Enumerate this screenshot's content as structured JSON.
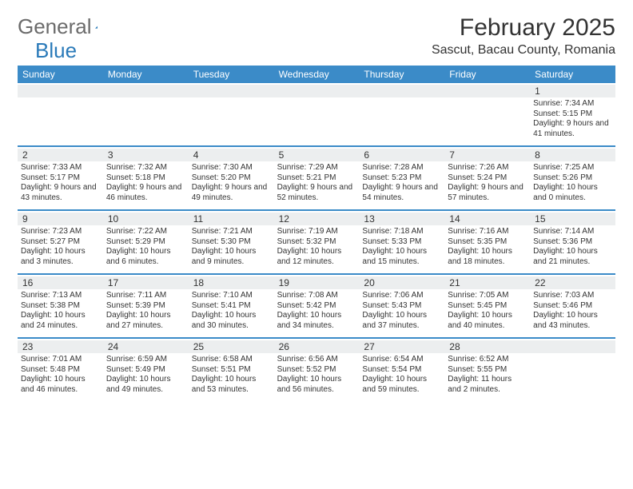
{
  "logo": {
    "text1": "General",
    "text2": "Blue"
  },
  "title": "February 2025",
  "subtitle": "Sascut, Bacau County, Romania",
  "dayNames": [
    "Sunday",
    "Monday",
    "Tuesday",
    "Wednesday",
    "Thursday",
    "Friday",
    "Saturday"
  ],
  "colors": {
    "headerBar": "#3b8bc8",
    "dayNumBg": "#eceeef",
    "logoGray": "#6b6b6b",
    "logoBlue": "#2a7ab9"
  },
  "weeks": [
    [
      null,
      null,
      null,
      null,
      null,
      null,
      {
        "n": "1",
        "sr": "7:34 AM",
        "ss": "5:15 PM",
        "dl": "9 hours and 41 minutes."
      }
    ],
    [
      {
        "n": "2",
        "sr": "7:33 AM",
        "ss": "5:17 PM",
        "dl": "9 hours and 43 minutes."
      },
      {
        "n": "3",
        "sr": "7:32 AM",
        "ss": "5:18 PM",
        "dl": "9 hours and 46 minutes."
      },
      {
        "n": "4",
        "sr": "7:30 AM",
        "ss": "5:20 PM",
        "dl": "9 hours and 49 minutes."
      },
      {
        "n": "5",
        "sr": "7:29 AM",
        "ss": "5:21 PM",
        "dl": "9 hours and 52 minutes."
      },
      {
        "n": "6",
        "sr": "7:28 AM",
        "ss": "5:23 PM",
        "dl": "9 hours and 54 minutes."
      },
      {
        "n": "7",
        "sr": "7:26 AM",
        "ss": "5:24 PM",
        "dl": "9 hours and 57 minutes."
      },
      {
        "n": "8",
        "sr": "7:25 AM",
        "ss": "5:26 PM",
        "dl": "10 hours and 0 minutes."
      }
    ],
    [
      {
        "n": "9",
        "sr": "7:23 AM",
        "ss": "5:27 PM",
        "dl": "10 hours and 3 minutes."
      },
      {
        "n": "10",
        "sr": "7:22 AM",
        "ss": "5:29 PM",
        "dl": "10 hours and 6 minutes."
      },
      {
        "n": "11",
        "sr": "7:21 AM",
        "ss": "5:30 PM",
        "dl": "10 hours and 9 minutes."
      },
      {
        "n": "12",
        "sr": "7:19 AM",
        "ss": "5:32 PM",
        "dl": "10 hours and 12 minutes."
      },
      {
        "n": "13",
        "sr": "7:18 AM",
        "ss": "5:33 PM",
        "dl": "10 hours and 15 minutes."
      },
      {
        "n": "14",
        "sr": "7:16 AM",
        "ss": "5:35 PM",
        "dl": "10 hours and 18 minutes."
      },
      {
        "n": "15",
        "sr": "7:14 AM",
        "ss": "5:36 PM",
        "dl": "10 hours and 21 minutes."
      }
    ],
    [
      {
        "n": "16",
        "sr": "7:13 AM",
        "ss": "5:38 PM",
        "dl": "10 hours and 24 minutes."
      },
      {
        "n": "17",
        "sr": "7:11 AM",
        "ss": "5:39 PM",
        "dl": "10 hours and 27 minutes."
      },
      {
        "n": "18",
        "sr": "7:10 AM",
        "ss": "5:41 PM",
        "dl": "10 hours and 30 minutes."
      },
      {
        "n": "19",
        "sr": "7:08 AM",
        "ss": "5:42 PM",
        "dl": "10 hours and 34 minutes."
      },
      {
        "n": "20",
        "sr": "7:06 AM",
        "ss": "5:43 PM",
        "dl": "10 hours and 37 minutes."
      },
      {
        "n": "21",
        "sr": "7:05 AM",
        "ss": "5:45 PM",
        "dl": "10 hours and 40 minutes."
      },
      {
        "n": "22",
        "sr": "7:03 AM",
        "ss": "5:46 PM",
        "dl": "10 hours and 43 minutes."
      }
    ],
    [
      {
        "n": "23",
        "sr": "7:01 AM",
        "ss": "5:48 PM",
        "dl": "10 hours and 46 minutes."
      },
      {
        "n": "24",
        "sr": "6:59 AM",
        "ss": "5:49 PM",
        "dl": "10 hours and 49 minutes."
      },
      {
        "n": "25",
        "sr": "6:58 AM",
        "ss": "5:51 PM",
        "dl": "10 hours and 53 minutes."
      },
      {
        "n": "26",
        "sr": "6:56 AM",
        "ss": "5:52 PM",
        "dl": "10 hours and 56 minutes."
      },
      {
        "n": "27",
        "sr": "6:54 AM",
        "ss": "5:54 PM",
        "dl": "10 hours and 59 minutes."
      },
      {
        "n": "28",
        "sr": "6:52 AM",
        "ss": "5:55 PM",
        "dl": "11 hours and 2 minutes."
      },
      null
    ]
  ],
  "labels": {
    "sunrise": "Sunrise: ",
    "sunset": "Sunset: ",
    "daylight": "Daylight: "
  }
}
